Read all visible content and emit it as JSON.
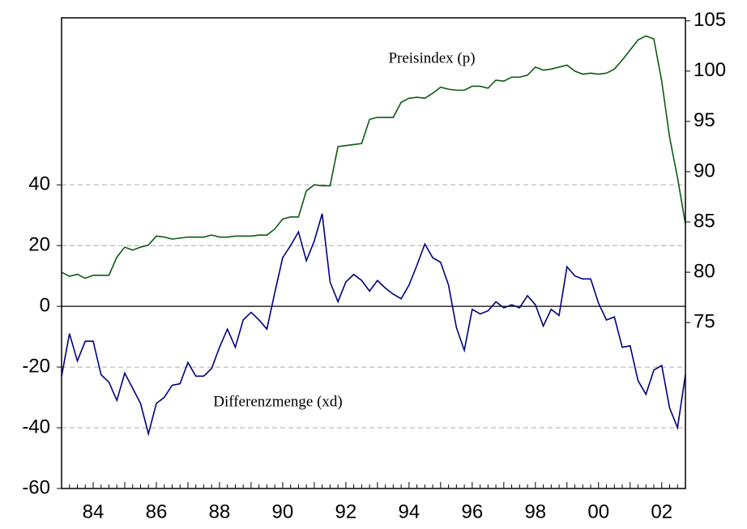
{
  "chart_data": {
    "type": "line",
    "annotations": [
      "Preisindex (p)",
      "Differenzmenge (xd)"
    ],
    "categories": [
      null,
      null,
      null,
      null,
      "84",
      null,
      null,
      null,
      null,
      null,
      null,
      null,
      "86",
      null,
      null,
      null,
      null,
      null,
      null,
      null,
      "88",
      null,
      null,
      null,
      null,
      null,
      null,
      null,
      "90",
      null,
      null,
      null,
      null,
      null,
      null,
      null,
      "92",
      null,
      null,
      null,
      null,
      null,
      null,
      null,
      "94",
      null,
      null,
      null,
      null,
      null,
      null,
      null,
      "96",
      null,
      null,
      null,
      null,
      null,
      null,
      null,
      "98",
      null,
      null,
      null,
      null,
      null,
      null,
      null,
      "00",
      null,
      null,
      null,
      null,
      null,
      null,
      null,
      "02",
      null,
      null,
      null
    ],
    "series": [
      {
        "name": "Preisindex (p)",
        "color": "#0b5a12",
        "axis": "y2",
        "values": [
          80,
          79.6,
          79.8,
          79.4,
          79.7,
          79.7,
          79.7,
          81.5,
          82.5,
          82.2,
          82.5,
          82.7,
          83.6,
          83.5,
          83.3,
          83.4,
          83.5,
          83.5,
          83.5,
          83.7,
          83.5,
          83.5,
          83.6,
          83.6,
          83.6,
          83.7,
          83.7,
          84.3,
          85.3,
          85.5,
          85.5,
          88.1,
          88.7,
          88.6,
          88.6,
          92.5,
          92.6,
          92.7,
          92.8,
          95.2,
          95.4,
          95.4,
          95.4,
          96.9,
          97.3,
          97.4,
          97.3,
          97.8,
          98.4,
          98.2,
          98.1,
          98.1,
          98.5,
          98.5,
          98.3,
          99.1,
          99,
          99.4,
          99.4,
          99.6,
          100.4,
          100.1,
          100.2,
          100.4,
          100.6,
          100,
          99.7,
          99.8,
          99.7,
          99.8,
          100.2,
          101.1,
          102.1,
          103.1,
          103.5,
          103.2,
          99,
          93.4,
          89.4,
          84.8
        ]
      },
      {
        "name": "Differenzmenge (xd)",
        "color": "#00007f",
        "axis": "y",
        "values": [
          -23,
          -9,
          -18,
          -11.5,
          -11.5,
          -22.5,
          -25,
          -31,
          -22,
          -27,
          -32,
          -42,
          -32,
          -30,
          -26,
          -25.5,
          -18.5,
          -23,
          -23,
          -20.5,
          -13.5,
          -7.5,
          -13.5,
          -4.5,
          -2,
          -4.5,
          -7.5,
          4.5,
          16,
          20,
          24.5,
          15,
          21.5,
          30.5,
          8,
          1.5,
          8,
          10.5,
          8.5,
          5,
          8.5,
          6,
          4,
          2.5,
          7,
          13.5,
          20.5,
          16,
          14.5,
          7,
          -7,
          -14.5,
          -1,
          -2.5,
          -1.5,
          1.5,
          -0.5,
          0.5,
          -0.5,
          3.5,
          0.5,
          -6.5,
          -1,
          -3,
          13,
          10,
          9,
          9,
          1,
          -4.5,
          -3.5,
          -13.5,
          -13,
          -24.5,
          -29,
          -21,
          -19.5,
          -33.5,
          -40,
          -22.5
        ]
      }
    ],
    "ylim": [
      -60,
      95
    ],
    "yticks": [
      -60,
      -40,
      -20,
      0,
      20,
      40
    ],
    "y2lim": [
      58.5,
      105.3
    ],
    "y2ticks": [
      75,
      80,
      85,
      90,
      95,
      100,
      105
    ],
    "grid": true
  }
}
